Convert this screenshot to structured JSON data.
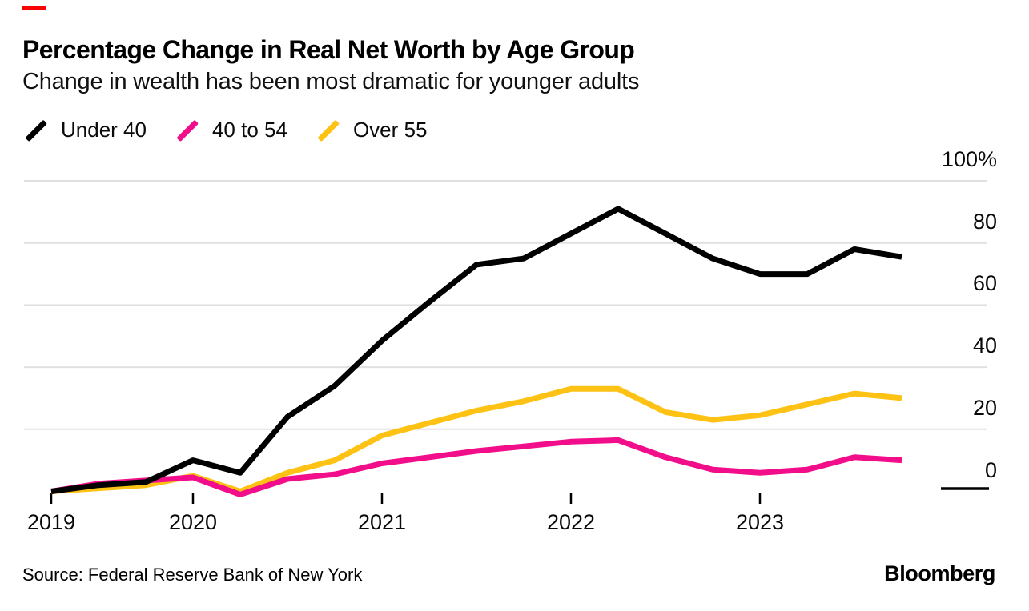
{
  "accent": {
    "red_mark_color": "#ff0000"
  },
  "header": {
    "title": "Percentage Change in Real Net Worth by Age Group",
    "subtitle": "Change in wealth has been most dramatic for younger adults"
  },
  "legend": [
    {
      "label": "Under 40",
      "color": "#000000"
    },
    {
      "label": "40 to 54",
      "color": "#f20d8a"
    },
    {
      "label": "Over 55",
      "color": "#fdc213"
    }
  ],
  "footer": {
    "source": "Source: Federal Reserve Bank of New York",
    "brand": "Bloomberg"
  },
  "chart_data": {
    "type": "line",
    "title": "Percentage Change in Real Net Worth by Age Group",
    "subtitle": "Change in wealth has been most dramatic for younger adults",
    "x_unit": "quarter",
    "x_periods": [
      "2019 Q2",
      "2019 Q3",
      "2019 Q4",
      "2020 Q1",
      "2020 Q2",
      "2020 Q3",
      "2020 Q4",
      "2021 Q1",
      "2021 Q2",
      "2021 Q3",
      "2021 Q4",
      "2022 Q1",
      "2022 Q2",
      "2022 Q3",
      "2022 Q4",
      "2023 Q1",
      "2023 Q2",
      "2023 Q3",
      "2023 Q4"
    ],
    "x_tick_labels": [
      "2019",
      "2020",
      "2021",
      "2022",
      "2023"
    ],
    "x_tick_indices": [
      0,
      3,
      7,
      11,
      15
    ],
    "y_ticks": [
      100,
      80,
      60,
      40,
      20,
      0
    ],
    "y_tick_labels": [
      "100%",
      "80",
      "60",
      "40",
      "20",
      "0"
    ],
    "grid_values": [
      100,
      80,
      60,
      40,
      20
    ],
    "ylim": [
      -5,
      100
    ],
    "grid": "horizontal-only",
    "legend_position": "top-left",
    "zero_axis": "short black dash at lower right",
    "series": [
      {
        "name": "Under 40",
        "color": "#000000",
        "values": [
          0,
          2,
          3,
          10,
          6,
          24,
          34,
          48.5,
          61,
          73,
          75,
          83,
          91,
          83,
          75,
          70,
          70,
          78,
          75.5
        ]
      },
      {
        "name": "40 to 54",
        "color": "#f20d8a",
        "values": [
          0,
          2.5,
          3.5,
          4.5,
          -1,
          4,
          5.5,
          9,
          11,
          13,
          14.5,
          16,
          16.5,
          11,
          7,
          6,
          7,
          11,
          10
        ]
      },
      {
        "name": "Over 55",
        "color": "#fdc213",
        "values": [
          0,
          1,
          2,
          5,
          0,
          6,
          10,
          18,
          22,
          26,
          29,
          33,
          33,
          25.5,
          23,
          24.5,
          28,
          31.5,
          30
        ]
      }
    ]
  }
}
